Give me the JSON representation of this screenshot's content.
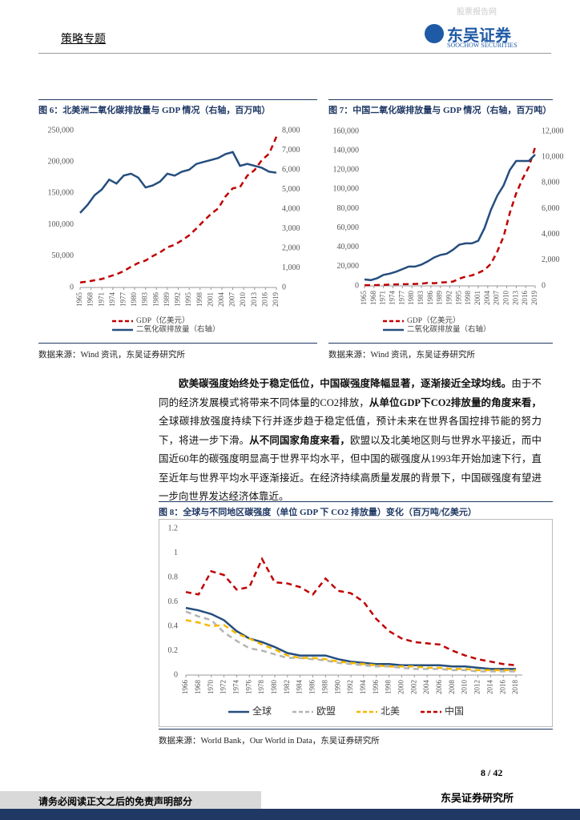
{
  "header": {
    "title": "策略专题",
    "logo_cn": "东吴证券",
    "logo_en": "SOOCHOW SECURITIES",
    "watermark": "股票报告网"
  },
  "chart_data": [
    {
      "type": "line",
      "title": "图 6：北美洲二氧化碳排放量与 GDP 情况（右轴，百万吨）",
      "source": "数据来源：Wind 资讯，东吴证券研究所",
      "x": [
        1965,
        1967,
        1969,
        1971,
        1973,
        1975,
        1977,
        1979,
        1981,
        1983,
        1985,
        1987,
        1989,
        1991,
        1993,
        1995,
        1997,
        1999,
        2001,
        2003,
        2005,
        2007,
        2009,
        2011,
        2013,
        2015,
        2017,
        2019
      ],
      "xlim": [
        1965,
        2019
      ],
      "xticks": [
        1965,
        1968,
        1971,
        1974,
        1977,
        1980,
        1983,
        1986,
        1989,
        1992,
        1995,
        1998,
        2001,
        2004,
        2007,
        2010,
        2013,
        2016,
        2019
      ],
      "ylim": [
        0,
        250000
      ],
      "yticks": [
        0,
        {
          "value": 50000,
          "label": "50,000"
        },
        {
          "value": 100000,
          "label": "100,000"
        },
        {
          "value": 150000,
          "label": "150,000"
        },
        {
          "value": 200000,
          "label": "200,000"
        },
        {
          "value": 250000,
          "label": "250,000"
        }
      ],
      "y2lim": [
        0,
        8000
      ],
      "y2ticks": [
        0,
        {
          "value": 1000,
          "label": "1,000"
        },
        {
          "value": 2000,
          "label": "2,000"
        },
        {
          "value": 3000,
          "label": "3,000"
        },
        {
          "value": 4000,
          "label": "4,000"
        },
        {
          "value": 5000,
          "label": "5,000"
        },
        {
          "value": 6000,
          "label": "6,000"
        },
        {
          "value": 7000,
          "label": "7,000"
        },
        {
          "value": 8000,
          "label": "8,000"
        }
      ],
      "grid": false,
      "legend": "bottom",
      "series": [
        {
          "name": "GDP（亿美元）",
          "color": "#c00000",
          "line_style": "dashed",
          "values": [
            8000,
            9500,
            11500,
            13500,
            17500,
            21000,
            26000,
            33000,
            39000,
            43000,
            50000,
            56000,
            64000,
            68000,
            75000,
            83000,
            94000,
            106000,
            117000,
            126000,
            145000,
            158000,
            160000,
            178000,
            187000,
            203000,
            213000,
            240000
          ]
        },
        {
          "name": "二氧化碳排放量（右轴）",
          "color": "#254e7e",
          "line_style": "solid",
          "axis": "y2",
          "values": [
            3800,
            4200,
            4700,
            5000,
            5500,
            5300,
            5700,
            5800,
            5600,
            5100,
            5200,
            5400,
            5800,
            5700,
            5900,
            6000,
            6300,
            6400,
            6500,
            6600,
            6800,
            6900,
            6200,
            6300,
            6200,
            6100,
            5900,
            5850
          ]
        }
      ]
    },
    {
      "type": "line",
      "title": "图 7：中国二氧化碳排放量与 GDP 情况（右轴，百万吨）",
      "source": "数据来源：Wind 资讯，东吴证券研究所",
      "x": [
        1965,
        1967,
        1969,
        1971,
        1973,
        1975,
        1977,
        1979,
        1981,
        1983,
        1985,
        1987,
        1989,
        1991,
        1993,
        1995,
        1997,
        1999,
        2001,
        2003,
        2005,
        2007,
        2009,
        2011,
        2013,
        2015,
        2017,
        2019
      ],
      "xlim": [
        1965,
        2019
      ],
      "xticks": [
        1965,
        1968,
        1971,
        1974,
        1977,
        1980,
        1983,
        1986,
        1989,
        1992,
        1995,
        1998,
        2001,
        2004,
        2007,
        2010,
        2013,
        2016,
        2019
      ],
      "ylim": [
        0,
        160000
      ],
      "yticks": [
        0,
        {
          "value": 20000,
          "label": "20,000"
        },
        {
          "value": 40000,
          "label": "40,000"
        },
        {
          "value": 60000,
          "label": "60,000"
        },
        {
          "value": 80000,
          "label": "80,000"
        },
        {
          "value": 100000,
          "label": "100,000"
        },
        {
          "value": 120000,
          "label": "120,000"
        },
        {
          "value": 140000,
          "label": "140,000"
        },
        {
          "value": 160000,
          "label": "160,000"
        }
      ],
      "y2lim": [
        0,
        12000
      ],
      "y2ticks": [
        0,
        {
          "value": 2000,
          "label": "2,000"
        },
        {
          "value": 4000,
          "label": "4,000"
        },
        {
          "value": 6000,
          "label": "6,000"
        },
        {
          "value": 8000,
          "label": "8,000"
        },
        {
          "value": 10000,
          "label": "10,000"
        },
        {
          "value": 12000,
          "label": "12,000"
        }
      ],
      "grid": false,
      "legend": "bottom",
      "series": [
        {
          "name": "GDP（亿美元）",
          "color": "#c00000",
          "line_style": "dashed",
          "values": [
            700,
            730,
            800,
            1000,
            1400,
            1600,
            1750,
            1800,
            1950,
            2300,
            3100,
            2700,
            3500,
            3800,
            4450,
            7340,
            9620,
            10900,
            13400,
            16600,
            22900,
            35500,
            51000,
            75500,
            95700,
            110600,
            123100,
            143400
          ]
        },
        {
          "name": "二氧化碳排放量（右轴）",
          "color": "#254e7e",
          "line_style": "solid",
          "axis": "y2",
          "values": [
            500,
            450,
            600,
            850,
            950,
            1100,
            1300,
            1500,
            1500,
            1650,
            1900,
            2200,
            2400,
            2500,
            2800,
            3200,
            3300,
            3300,
            3500,
            4500,
            5900,
            7000,
            7800,
            9000,
            9700,
            9700,
            9700,
            10200
          ]
        }
      ]
    },
    {
      "type": "line",
      "title": "图 8：全球与不同地区碳强度（单位 GDP 下 CO2 排放量）变化（百万吨/亿美元）",
      "source": "数据来源：World Bank，Our World in Data，东吴证券研究所",
      "x": [
        1966,
        1968,
        1970,
        1972,
        1974,
        1976,
        1978,
        1980,
        1982,
        1984,
        1986,
        1988,
        1990,
        1992,
        1994,
        1996,
        1998,
        2000,
        2002,
        2004,
        2006,
        2008,
        2010,
        2012,
        2014,
        2016,
        2018
      ],
      "xlim": [
        1966,
        2019
      ],
      "xticks": [
        1966,
        1968,
        1970,
        1972,
        1974,
        1976,
        1978,
        1980,
        1982,
        1984,
        1986,
        1988,
        1990,
        1992,
        1994,
        1996,
        1998,
        2000,
        2002,
        2004,
        2006,
        2008,
        2010,
        2012,
        2014,
        2016,
        2018
      ],
      "ylim": [
        0,
        1.2
      ],
      "yticks": [
        0,
        0.2,
        0.4,
        0.6,
        0.8,
        1,
        1.2
      ],
      "grid": false,
      "legend": "bottom",
      "series": [
        {
          "name": "全球",
          "color": "#254e7e",
          "line_style": "solid",
          "values": [
            0.55,
            0.53,
            0.5,
            0.45,
            0.36,
            0.3,
            0.27,
            0.23,
            0.18,
            0.16,
            0.16,
            0.16,
            0.13,
            0.11,
            0.1,
            0.09,
            0.09,
            0.08,
            0.08,
            0.08,
            0.08,
            0.07,
            0.07,
            0.06,
            0.05,
            0.05,
            0.05
          ]
        },
        {
          "name": "欧盟",
          "color": "#b4b4b4",
          "line_style": "dashed",
          "values": [
            0.52,
            0.48,
            0.45,
            0.35,
            0.28,
            0.22,
            0.2,
            0.17,
            0.14,
            0.14,
            0.13,
            0.12,
            0.1,
            0.09,
            0.08,
            0.07,
            0.07,
            0.06,
            0.05,
            0.05,
            0.05,
            0.04,
            0.04,
            0.03,
            0.03,
            0.03,
            0.03
          ]
        },
        {
          "name": "北美",
          "color": "#f5b800",
          "line_style": "dashed",
          "values": [
            0.45,
            0.43,
            0.4,
            0.41,
            0.34,
            0.3,
            0.25,
            0.21,
            0.16,
            0.14,
            0.14,
            0.13,
            0.11,
            0.1,
            0.09,
            0.08,
            0.07,
            0.07,
            0.07,
            0.06,
            0.06,
            0.05,
            0.05,
            0.04,
            0.04,
            0.04,
            0.04
          ]
        },
        {
          "name": "中国",
          "color": "#c00000",
          "line_style": "dashed",
          "values": [
            0.68,
            0.66,
            0.85,
            0.82,
            0.7,
            0.72,
            0.95,
            0.76,
            0.75,
            0.72,
            0.66,
            0.79,
            0.69,
            0.67,
            0.6,
            0.46,
            0.36,
            0.3,
            0.27,
            0.26,
            0.25,
            0.2,
            0.16,
            0.13,
            0.11,
            0.09,
            0.08
          ]
        }
      ]
    }
  ],
  "body": {
    "runs": [
      {
        "text": "欧美碳强度始终处于稳定低位，中国碳强度降幅显著，逐渐接近全球均线。",
        "bold": true
      },
      {
        "text": "由于不同的经济发展模式将带来不同体量的CO2排放，",
        "bold": false
      },
      {
        "text": "从单位GDP下CO2排放量的角度来看，",
        "bold": true
      },
      {
        "text": "全球碳排放强度持续下行并逐步趋于稳定低值，预计未来在世界各国控排节能的努力下，将进一步下滑。",
        "bold": false
      },
      {
        "text": "从不同国家角度来看，",
        "bold": true
      },
      {
        "text": "欧盟以及北美地区则与世界水平接近，而中国近60年的碳强度明显高于世界平均水平，但中国的碳强度从1993年开始加速下行，直至近年与世界平均水平逐渐接近。在经济持续高质量发展的背景下，中国碳强度有望进一步向世界发达经济体靠近。",
        "bold": false
      }
    ]
  },
  "footer": {
    "page": "8 / 42",
    "disclaimer": "请务必阅读正文之后的免责声明部分",
    "org": "东吴证券研究所"
  }
}
